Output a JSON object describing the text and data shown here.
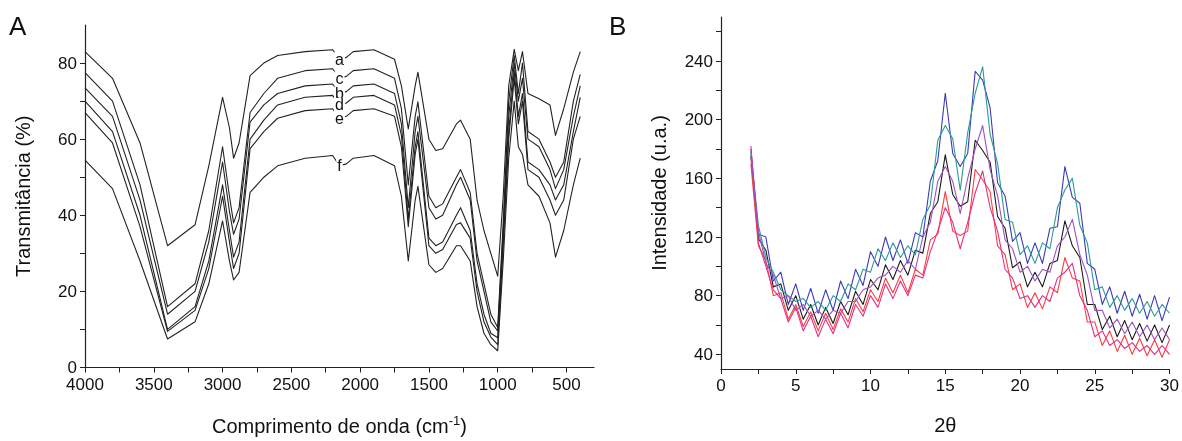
{
  "chart_data": [
    {
      "type": "line",
      "title": "A",
      "xlabel": "Comprimento de onda (cm$^{-1}$)",
      "ylabel": "Transmitância (%)",
      "x": [
        4000,
        3800,
        3600,
        3400,
        3200,
        3100,
        3000,
        2950,
        2920,
        2880,
        2800,
        2700,
        2600,
        2400,
        2200,
        2150,
        2100,
        2050,
        1900,
        1750,
        1700,
        1650,
        1600,
        1580,
        1500,
        1450,
        1400,
        1300,
        1270,
        1200,
        1150,
        1100,
        1050,
        1000,
        960,
        920,
        880,
        850,
        820,
        780,
        700,
        620,
        580,
        520,
        450,
        400
      ],
      "series": [
        {
          "name": "a",
          "color": "#222222",
          "values": [
            83,
            76,
            59,
            32,
            37.5,
            53,
            71,
            63,
            55,
            59,
            76.7,
            80,
            82,
            83,
            83.5,
            81,
            81.5,
            83,
            83.5,
            81,
            74,
            62.7,
            74,
            77.6,
            60,
            57,
            57.5,
            64,
            65,
            60,
            44,
            36,
            30,
            24,
            45,
            74,
            83.6,
            78,
            83,
            72,
            70.6,
            69,
            61,
            68,
            77.6,
            83
          ]
        },
        {
          "name": "c",
          "color": "#222222",
          "values": [
            77.5,
            70,
            48,
            16,
            22,
            36,
            58,
            45,
            38,
            42,
            67,
            72,
            76,
            78,
            78.5,
            76,
            76.5,
            78,
            78.5,
            76,
            68,
            48,
            66,
            69.8,
            45,
            42,
            43,
            50,
            52,
            46,
            30,
            22,
            14,
            10.5,
            38,
            70,
            82,
            72,
            80,
            62,
            60,
            54,
            50,
            54,
            70,
            77
          ]
        },
        {
          "name": "b",
          "color": "#222222",
          "values": [
            73.5,
            66,
            44,
            14,
            20,
            33,
            54,
            41,
            35,
            39,
            64.5,
            69,
            72,
            74,
            74.5,
            72,
            72.5,
            74,
            74.5,
            72,
            64,
            42,
            62,
            66,
            42,
            39,
            40,
            48,
            50,
            44,
            28,
            20,
            12,
            9.6,
            36,
            66,
            80,
            70,
            76,
            60,
            58,
            52,
            47,
            52,
            66,
            74
          ]
        },
        {
          "name": "d",
          "color": "#222222",
          "values": [
            70,
            62,
            40,
            10,
            16,
            28,
            48,
            36,
            29,
            33,
            60,
            65,
            69,
            71,
            71.5,
            69,
            69.5,
            71,
            71.5,
            69,
            61,
            39,
            58,
            62,
            34,
            32,
            33,
            40,
            42,
            36,
            22,
            14,
            9,
            7.8,
            34,
            62,
            78,
            66,
            72,
            54,
            52,
            48,
            44,
            48,
            62,
            71
          ]
        },
        {
          "name": "e",
          "color": "#222222",
          "values": [
            67,
            59,
            37,
            9.5,
            15,
            26,
            45,
            33,
            26,
            30,
            57.5,
            62,
            65.5,
            67.5,
            68,
            65.5,
            66,
            67.5,
            68,
            66,
            58,
            37,
            56,
            60,
            32,
            30,
            31,
            37.6,
            38,
            34,
            20,
            12,
            8,
            6,
            32,
            60,
            76,
            64,
            70,
            52,
            50,
            44,
            40,
            44,
            60,
            66
          ]
        },
        {
          "name": "f",
          "color": "#222222",
          "values": [
            54.5,
            47,
            28,
            7.5,
            12,
            22,
            38.5,
            28,
            23,
            25,
            46,
            50,
            53,
            55,
            55.7,
            53,
            53.5,
            55,
            55.7,
            53,
            45,
            28,
            44,
            47.6,
            27,
            25,
            26,
            32,
            32,
            28,
            16,
            9,
            6,
            4.4,
            28,
            55,
            70,
            58,
            56,
            48,
            45,
            38,
            29,
            36,
            48,
            55
          ]
        }
      ],
      "xlim": [
        4000,
        300
      ],
      "xticks": [
        4000,
        {
          "value": 3750,
          "label": null
        },
        3500,
        {
          "value": 3250,
          "label": null
        },
        3000,
        {
          "value": 2750,
          "label": null
        },
        2500,
        {
          "value": 2250,
          "label": null
        },
        2000,
        {
          "value": 1750,
          "label": null
        },
        1500,
        {
          "value": 1250,
          "label": null
        },
        1000,
        {
          "value": 750,
          "label": null
        },
        500
      ],
      "ylim": [
        0,
        90
      ],
      "yticks": [
        0,
        {
          "value": 10,
          "label": null
        },
        20,
        {
          "value": 30,
          "label": null
        },
        40,
        {
          "value": 50,
          "label": null
        },
        60,
        {
          "value": 70,
          "label": null
        },
        80
      ],
      "grid": false
    },
    {
      "type": "line",
      "title": "B",
      "xlabel": "2θ",
      "ylabel": "Intensidade (u.a.)",
      "x": [
        2,
        2.5,
        3,
        3.5,
        4,
        4.5,
        5,
        5.5,
        6,
        6.5,
        7,
        7.5,
        8,
        8.5,
        9,
        9.5,
        10,
        10.5,
        11,
        11.5,
        12,
        12.5,
        13,
        13.5,
        14,
        14.5,
        15,
        15.5,
        16,
        16.5,
        17,
        17.5,
        18,
        18.5,
        19,
        19.5,
        20,
        20.5,
        21,
        21.5,
        22,
        22.5,
        23,
        23.5,
        24,
        24.5,
        25,
        25.5,
        26,
        26.5,
        27,
        27.5,
        28,
        28.5,
        29,
        29.5,
        30
      ],
      "series": [
        {
          "color": "#1a1a1a",
          "values": [
            175,
            119,
            111,
            86,
            88,
            70,
            80,
            64,
            74,
            60,
            72,
            61,
            76,
            67,
            83,
            74,
            91,
            84,
            101,
            91,
            104,
            94,
            111,
            109,
            136,
            144,
            176,
            149,
            141,
            144,
            186,
            179,
            171,
            134,
            126,
            99,
            103,
            86,
            96,
            86,
            102,
            104,
            131,
            114,
            106,
            74,
            74,
            57,
            66,
            52,
            63,
            50,
            61,
            49,
            60,
            48,
            60
          ]
        },
        {
          "color": "#ff3b3b",
          "values": [
            170,
            114,
            104,
            80,
            82,
            64,
            74,
            59,
            69,
            56,
            68,
            57,
            71,
            62,
            78,
            69,
            84,
            76,
            92,
            82,
            94,
            82,
            98,
            94,
            118,
            122,
            151,
            124,
            121,
            124,
            166,
            159,
            151,
            114,
            108,
            84,
            88,
            72,
            82,
            71,
            86,
            82,
            106,
            92,
            90,
            62,
            62,
            46,
            56,
            42,
            53,
            40,
            51,
            39,
            50,
            38,
            50
          ]
        },
        {
          "color": "#3a3ab8",
          "values": [
            180,
            122,
            120,
            90,
            96,
            74,
            88,
            70,
            85,
            68,
            84,
            70,
            90,
            78,
            98,
            87,
            110,
            100,
            120,
            104,
            118,
            102,
            123,
            120,
            158,
            172,
            218,
            177,
            168,
            177,
            233,
            227,
            208,
            157,
            148,
            117,
            123,
            102,
            116,
            102,
            126,
            127,
            168,
            147,
            143,
            102,
            98,
            74,
            86,
            68,
            83,
            66,
            81,
            64,
            80,
            63,
            79
          ]
        },
        {
          "color": "#2a9a9a",
          "values": [
            178,
            128,
            106,
            96,
            84,
            80,
            76,
            78,
            72,
            76,
            70,
            80,
            76,
            88,
            84,
            98,
            96,
            112,
            104,
            116,
            106,
            114,
            108,
            132,
            142,
            186,
            196,
            187,
            152,
            191,
            218,
            236,
            190,
            170,
            132,
            130,
            108,
            114,
            102,
            116,
            112,
            140,
            152,
            160,
            128,
            116,
            84,
            86,
            72,
            80,
            70,
            78,
            68,
            76,
            66,
            74,
            68
          ]
        },
        {
          "color": "#e0308a",
          "values": [
            182,
            116,
            100,
            84,
            78,
            62,
            72,
            56,
            66,
            52,
            64,
            54,
            68,
            58,
            74,
            66,
            80,
            72,
            88,
            78,
            90,
            80,
            94,
            92,
            110,
            124,
            140,
            130,
            112,
            130,
            150,
            165,
            140,
            124,
            98,
            92,
            78,
            80,
            72,
            80,
            76,
            92,
            96,
            102,
            80,
            70,
            52,
            56,
            46,
            50,
            44,
            48,
            42,
            46,
            40,
            46,
            40
          ]
        },
        {
          "color": "#a050c0",
          "values": [
            176,
            124,
            102,
            94,
            78,
            80,
            70,
            74,
            66,
            70,
            64,
            70,
            68,
            76,
            76,
            84,
            86,
            92,
            94,
            100,
            96,
            104,
            98,
            120,
            130,
            158,
            168,
            158,
            136,
            160,
            180,
            196,
            166,
            148,
            118,
            112,
            96,
            100,
            90,
            98,
            96,
            114,
            120,
            132,
            108,
            94,
            70,
            70,
            58,
            64,
            54,
            62,
            52,
            60,
            50,
            58,
            50
          ]
        }
      ],
      "xlim": [
        0,
        30
      ],
      "xticks": [
        0,
        {
          "value": 2.5,
          "label": null
        },
        5,
        {
          "value": 7.5,
          "label": null
        },
        10,
        {
          "value": 12.5,
          "label": null
        },
        15,
        {
          "value": 17.5,
          "label": null
        },
        20,
        {
          "value": 22.5,
          "label": null
        },
        25,
        {
          "value": 27.5,
          "label": null
        },
        30
      ],
      "ylim": [
        30,
        270
      ],
      "yticks": [
        40,
        {
          "value": 60,
          "label": null
        },
        80,
        {
          "value": 100,
          "label": null
        },
        120,
        {
          "value": 140,
          "label": null
        },
        160,
        {
          "value": 180,
          "label": null
        },
        200,
        {
          "value": 220,
          "label": null
        },
        240,
        {
          "value": 260,
          "label": null
        }
      ],
      "grid": false
    }
  ]
}
